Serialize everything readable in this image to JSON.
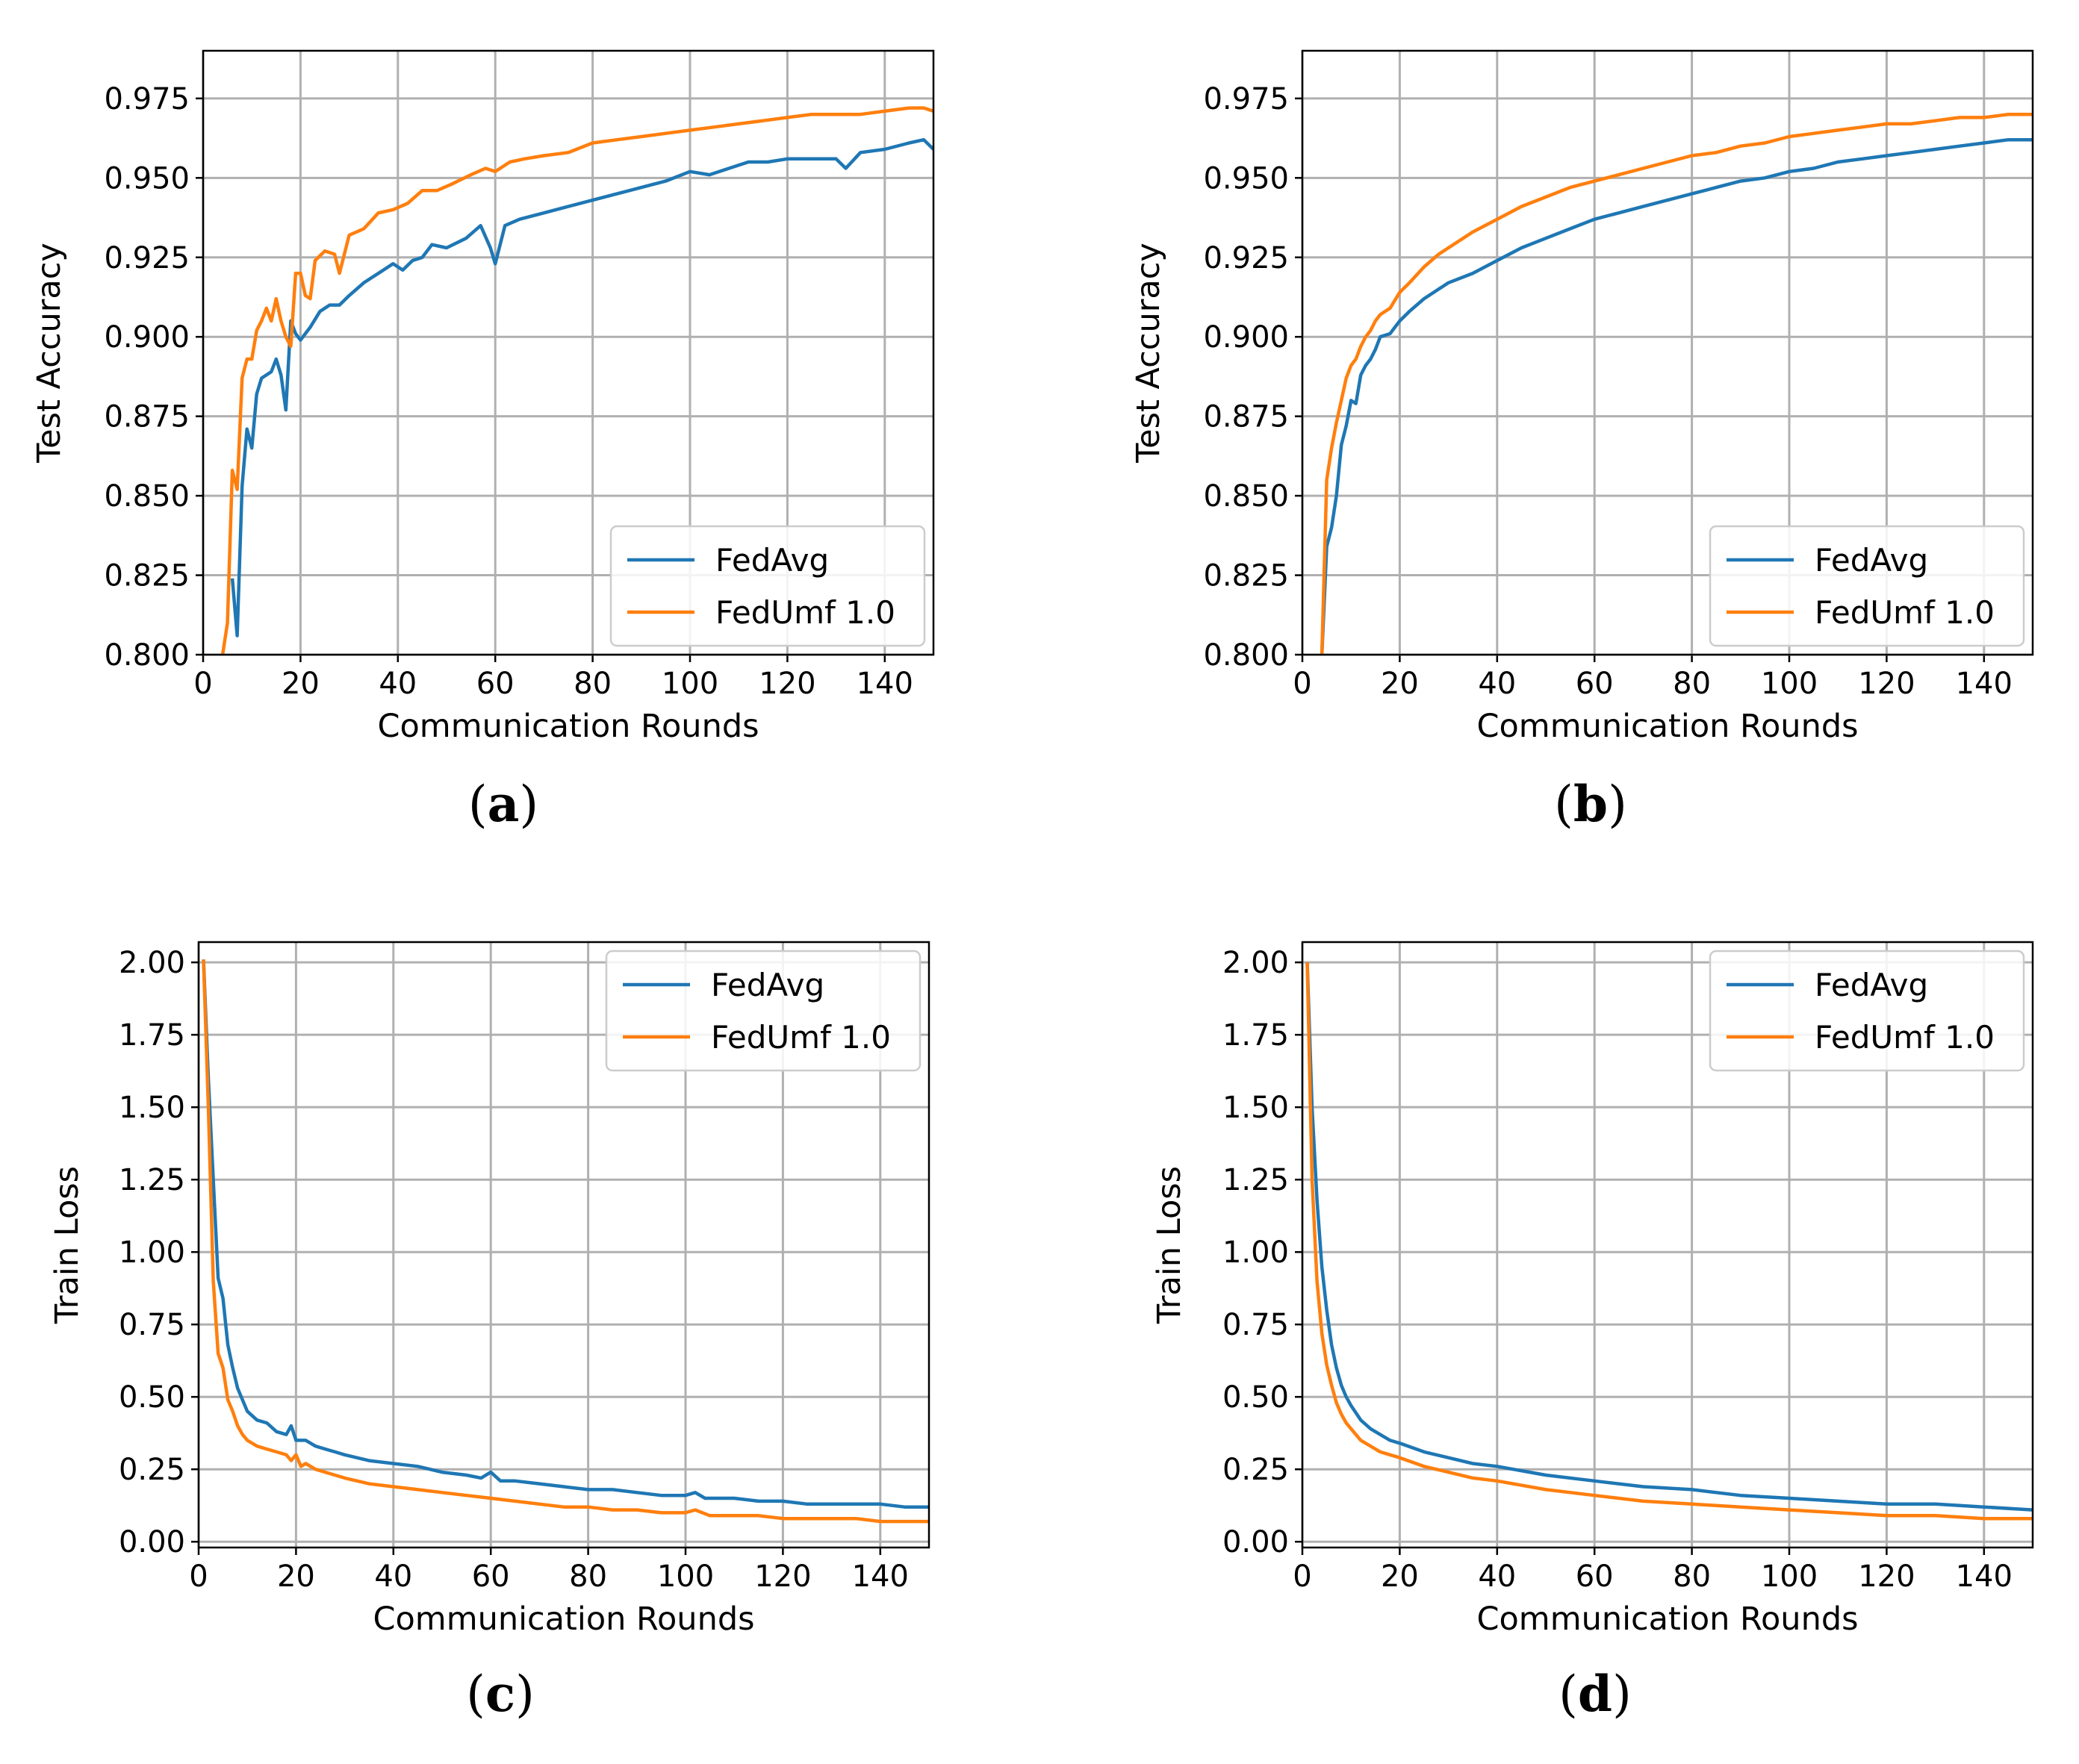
{
  "colors": {
    "fedavg": "#1f77b4",
    "fedumf": "#ff7f0e",
    "grid": "#b0b0b0",
    "axes": "#000000"
  },
  "panels": [
    {
      "caption": "(a)",
      "caption_letter": "a"
    },
    {
      "caption": "(b)",
      "caption_letter": "b"
    },
    {
      "caption": "(c)",
      "caption_letter": "c"
    },
    {
      "caption": "(d)",
      "caption_letter": "d"
    }
  ],
  "chart_data": [
    {
      "type": "line",
      "panel": "a",
      "xlabel": "Communication Rounds",
      "ylabel": "Test Accuracy",
      "xlim": [
        0,
        150
      ],
      "ylim": [
        0.8,
        0.99
      ],
      "xticks": [
        "0",
        "20",
        "40",
        "60",
        "80",
        "100",
        "120",
        "140"
      ],
      "yticks": [
        "0.800",
        "0.825",
        "0.850",
        "0.875",
        "0.900",
        "0.925",
        "0.950",
        "0.975"
      ],
      "grid": true,
      "legend_position": "lower right",
      "series": [
        {
          "name": "FedAvg",
          "color": "#1f77b4",
          "x": [
            6,
            7,
            8,
            9,
            10,
            11,
            12,
            14,
            15,
            16,
            17,
            18,
            19,
            20,
            22,
            24,
            26,
            28,
            30,
            33,
            36,
            39,
            41,
            43,
            45,
            47,
            50,
            54,
            57,
            59,
            60,
            62,
            65,
            70,
            75,
            80,
            85,
            90,
            95,
            100,
            104,
            108,
            112,
            116,
            120,
            125,
            130,
            132,
            135,
            140,
            145,
            148,
            150
          ],
          "y": [
            0.824,
            0.806,
            0.853,
            0.871,
            0.865,
            0.882,
            0.887,
            0.889,
            0.893,
            0.888,
            0.877,
            0.905,
            0.901,
            0.899,
            0.903,
            0.908,
            0.91,
            0.91,
            0.913,
            0.917,
            0.92,
            0.923,
            0.921,
            0.924,
            0.925,
            0.929,
            0.928,
            0.931,
            0.935,
            0.928,
            0.923,
            0.935,
            0.937,
            0.939,
            0.941,
            0.943,
            0.945,
            0.947,
            0.949,
            0.952,
            0.951,
            0.953,
            0.955,
            0.955,
            0.956,
            0.956,
            0.956,
            0.953,
            0.958,
            0.959,
            0.961,
            0.962,
            0.959
          ]
        },
        {
          "name": "FedUmf 1.0",
          "color": "#ff7f0e",
          "x": [
            4,
            5,
            6,
            7,
            8,
            9,
            10,
            11,
            12,
            13,
            14,
            15,
            16,
            17,
            18,
            19,
            20,
            21,
            22,
            23,
            25,
            27,
            28,
            30,
            33,
            36,
            39,
            42,
            45,
            48,
            51,
            55,
            58,
            60,
            63,
            66,
            70,
            75,
            80,
            85,
            90,
            95,
            100,
            105,
            110,
            115,
            120,
            125,
            130,
            135,
            140,
            145,
            148,
            150
          ],
          "y": [
            0.8,
            0.81,
            0.858,
            0.852,
            0.887,
            0.893,
            0.893,
            0.902,
            0.905,
            0.909,
            0.905,
            0.912,
            0.905,
            0.9,
            0.897,
            0.92,
            0.92,
            0.913,
            0.912,
            0.924,
            0.927,
            0.926,
            0.92,
            0.932,
            0.934,
            0.939,
            0.94,
            0.942,
            0.946,
            0.946,
            0.948,
            0.951,
            0.953,
            0.952,
            0.955,
            0.956,
            0.957,
            0.958,
            0.961,
            0.962,
            0.963,
            0.964,
            0.965,
            0.966,
            0.967,
            0.968,
            0.969,
            0.97,
            0.97,
            0.97,
            0.971,
            0.972,
            0.972,
            0.971
          ]
        }
      ]
    },
    {
      "type": "line",
      "panel": "b",
      "xlabel": "Communication Rounds",
      "ylabel": "Test Accuracy",
      "xlim": [
        0,
        150
      ],
      "ylim": [
        0.8,
        0.99
      ],
      "xticks": [
        "0",
        "20",
        "40",
        "60",
        "80",
        "100",
        "120",
        "140"
      ],
      "yticks": [
        "0.800",
        "0.825",
        "0.850",
        "0.875",
        "0.900",
        "0.925",
        "0.950",
        "0.975"
      ],
      "grid": true,
      "legend_position": "lower right",
      "series": [
        {
          "name": "FedAvg",
          "color": "#1f77b4",
          "x": [
            4,
            5,
            6,
            7,
            8,
            9,
            10,
            11,
            12,
            13,
            14,
            15,
            16,
            18,
            20,
            22,
            25,
            28,
            30,
            35,
            40,
            45,
            50,
            55,
            60,
            65,
            70,
            75,
            80,
            85,
            90,
            95,
            100,
            105,
            110,
            115,
            120,
            125,
            130,
            135,
            140,
            145,
            150
          ],
          "y": [
            0.8,
            0.834,
            0.84,
            0.85,
            0.866,
            0.872,
            0.88,
            0.879,
            0.888,
            0.891,
            0.893,
            0.896,
            0.9,
            0.901,
            0.905,
            0.908,
            0.912,
            0.915,
            0.917,
            0.92,
            0.924,
            0.928,
            0.931,
            0.934,
            0.937,
            0.939,
            0.941,
            0.943,
            0.945,
            0.947,
            0.949,
            0.95,
            0.952,
            0.953,
            0.955,
            0.956,
            0.957,
            0.958,
            0.959,
            0.96,
            0.961,
            0.962,
            0.962
          ]
        },
        {
          "name": "FedUmf 1.0",
          "color": "#ff7f0e",
          "x": [
            4,
            5,
            6,
            7,
            8,
            9,
            10,
            11,
            12,
            13,
            14,
            15,
            16,
            18,
            20,
            22,
            25,
            28,
            30,
            35,
            40,
            45,
            50,
            55,
            60,
            65,
            70,
            75,
            80,
            85,
            90,
            95,
            100,
            105,
            110,
            115,
            120,
            125,
            130,
            135,
            140,
            145,
            150
          ],
          "y": [
            0.8,
            0.855,
            0.865,
            0.873,
            0.88,
            0.887,
            0.891,
            0.893,
            0.897,
            0.9,
            0.902,
            0.905,
            0.907,
            0.909,
            0.914,
            0.917,
            0.922,
            0.926,
            0.928,
            0.933,
            0.937,
            0.941,
            0.944,
            0.947,
            0.949,
            0.951,
            0.953,
            0.955,
            0.957,
            0.958,
            0.96,
            0.961,
            0.963,
            0.964,
            0.965,
            0.966,
            0.967,
            0.967,
            0.968,
            0.969,
            0.969,
            0.97,
            0.97
          ]
        }
      ]
    },
    {
      "type": "line",
      "panel": "c",
      "xlabel": "Communication Rounds",
      "ylabel": "Train Loss",
      "xlim": [
        0,
        150
      ],
      "ylim": [
        -0.02,
        2.07
      ],
      "xticks": [
        "0",
        "20",
        "40",
        "60",
        "80",
        "100",
        "120",
        "140"
      ],
      "yticks": [
        "0.00",
        "0.25",
        "0.50",
        "0.75",
        "1.00",
        "1.25",
        "1.50",
        "1.75",
        "2.00"
      ],
      "grid": true,
      "legend_position": "upper right",
      "series": [
        {
          "name": "FedAvg",
          "color": "#1f77b4",
          "x": [
            1,
            2,
            3,
            4,
            5,
            6,
            7,
            8,
            9,
            10,
            12,
            14,
            16,
            18,
            19,
            20,
            22,
            24,
            26,
            28,
            30,
            35,
            40,
            45,
            50,
            55,
            58,
            60,
            62,
            65,
            70,
            75,
            80,
            85,
            90,
            95,
            100,
            102,
            104,
            110,
            115,
            120,
            125,
            130,
            135,
            140,
            145,
            148,
            150
          ],
          "y": [
            2.01,
            1.6,
            1.25,
            0.91,
            0.84,
            0.68,
            0.6,
            0.53,
            0.49,
            0.45,
            0.42,
            0.41,
            0.38,
            0.37,
            0.4,
            0.35,
            0.35,
            0.33,
            0.32,
            0.31,
            0.3,
            0.28,
            0.27,
            0.26,
            0.24,
            0.23,
            0.22,
            0.24,
            0.21,
            0.21,
            0.2,
            0.19,
            0.18,
            0.18,
            0.17,
            0.16,
            0.16,
            0.17,
            0.15,
            0.15,
            0.14,
            0.14,
            0.13,
            0.13,
            0.13,
            0.13,
            0.12,
            0.12,
            0.12
          ]
        },
        {
          "name": "FedUmf 1.0",
          "color": "#ff7f0e",
          "x": [
            1,
            2,
            3,
            4,
            5,
            6,
            7,
            8,
            9,
            10,
            12,
            14,
            16,
            18,
            19,
            20,
            21,
            22,
            24,
            26,
            28,
            30,
            35,
            40,
            45,
            50,
            55,
            60,
            65,
            70,
            75,
            80,
            85,
            90,
            95,
            100,
            102,
            105,
            110,
            115,
            120,
            125,
            130,
            135,
            140,
            145,
            150
          ],
          "y": [
            2.01,
            1.5,
            0.9,
            0.65,
            0.6,
            0.49,
            0.45,
            0.4,
            0.37,
            0.35,
            0.33,
            0.32,
            0.31,
            0.3,
            0.28,
            0.3,
            0.26,
            0.27,
            0.25,
            0.24,
            0.23,
            0.22,
            0.2,
            0.19,
            0.18,
            0.17,
            0.16,
            0.15,
            0.14,
            0.13,
            0.12,
            0.12,
            0.11,
            0.11,
            0.1,
            0.1,
            0.11,
            0.09,
            0.09,
            0.09,
            0.08,
            0.08,
            0.08,
            0.08,
            0.07,
            0.07,
            0.07
          ]
        }
      ]
    },
    {
      "type": "line",
      "panel": "d",
      "xlabel": "Communication Rounds",
      "ylabel": "Train Loss",
      "xlim": [
        0,
        150
      ],
      "ylim": [
        -0.02,
        2.07
      ],
      "xticks": [
        "0",
        "20",
        "40",
        "60",
        "80",
        "100",
        "120",
        "140"
      ],
      "yticks": [
        "0.00",
        "0.25",
        "0.50",
        "0.75",
        "1.00",
        "1.25",
        "1.50",
        "1.75",
        "2.00"
      ],
      "grid": true,
      "legend_position": "upper right",
      "series": [
        {
          "name": "FedAvg",
          "color": "#1f77b4",
          "x": [
            1,
            2,
            3,
            4,
            5,
            6,
            7,
            8,
            9,
            10,
            12,
            14,
            16,
            18,
            20,
            25,
            30,
            35,
            40,
            50,
            60,
            70,
            80,
            90,
            100,
            110,
            120,
            130,
            140,
            150
          ],
          "y": [
            2.0,
            1.5,
            1.18,
            0.95,
            0.8,
            0.68,
            0.6,
            0.54,
            0.5,
            0.47,
            0.42,
            0.39,
            0.37,
            0.35,
            0.34,
            0.31,
            0.29,
            0.27,
            0.26,
            0.23,
            0.21,
            0.19,
            0.18,
            0.16,
            0.15,
            0.14,
            0.13,
            0.13,
            0.12,
            0.11
          ]
        },
        {
          "name": "FedUmf 1.0",
          "color": "#ff7f0e",
          "x": [
            1,
            2,
            3,
            4,
            5,
            6,
            7,
            8,
            9,
            10,
            12,
            14,
            16,
            18,
            20,
            25,
            30,
            35,
            40,
            50,
            60,
            70,
            80,
            90,
            100,
            110,
            120,
            130,
            140,
            150
          ],
          "y": [
            2.0,
            1.25,
            0.9,
            0.72,
            0.61,
            0.54,
            0.48,
            0.44,
            0.41,
            0.39,
            0.35,
            0.33,
            0.31,
            0.3,
            0.29,
            0.26,
            0.24,
            0.22,
            0.21,
            0.18,
            0.16,
            0.14,
            0.13,
            0.12,
            0.11,
            0.1,
            0.09,
            0.09,
            0.08,
            0.08
          ]
        }
      ]
    }
  ]
}
